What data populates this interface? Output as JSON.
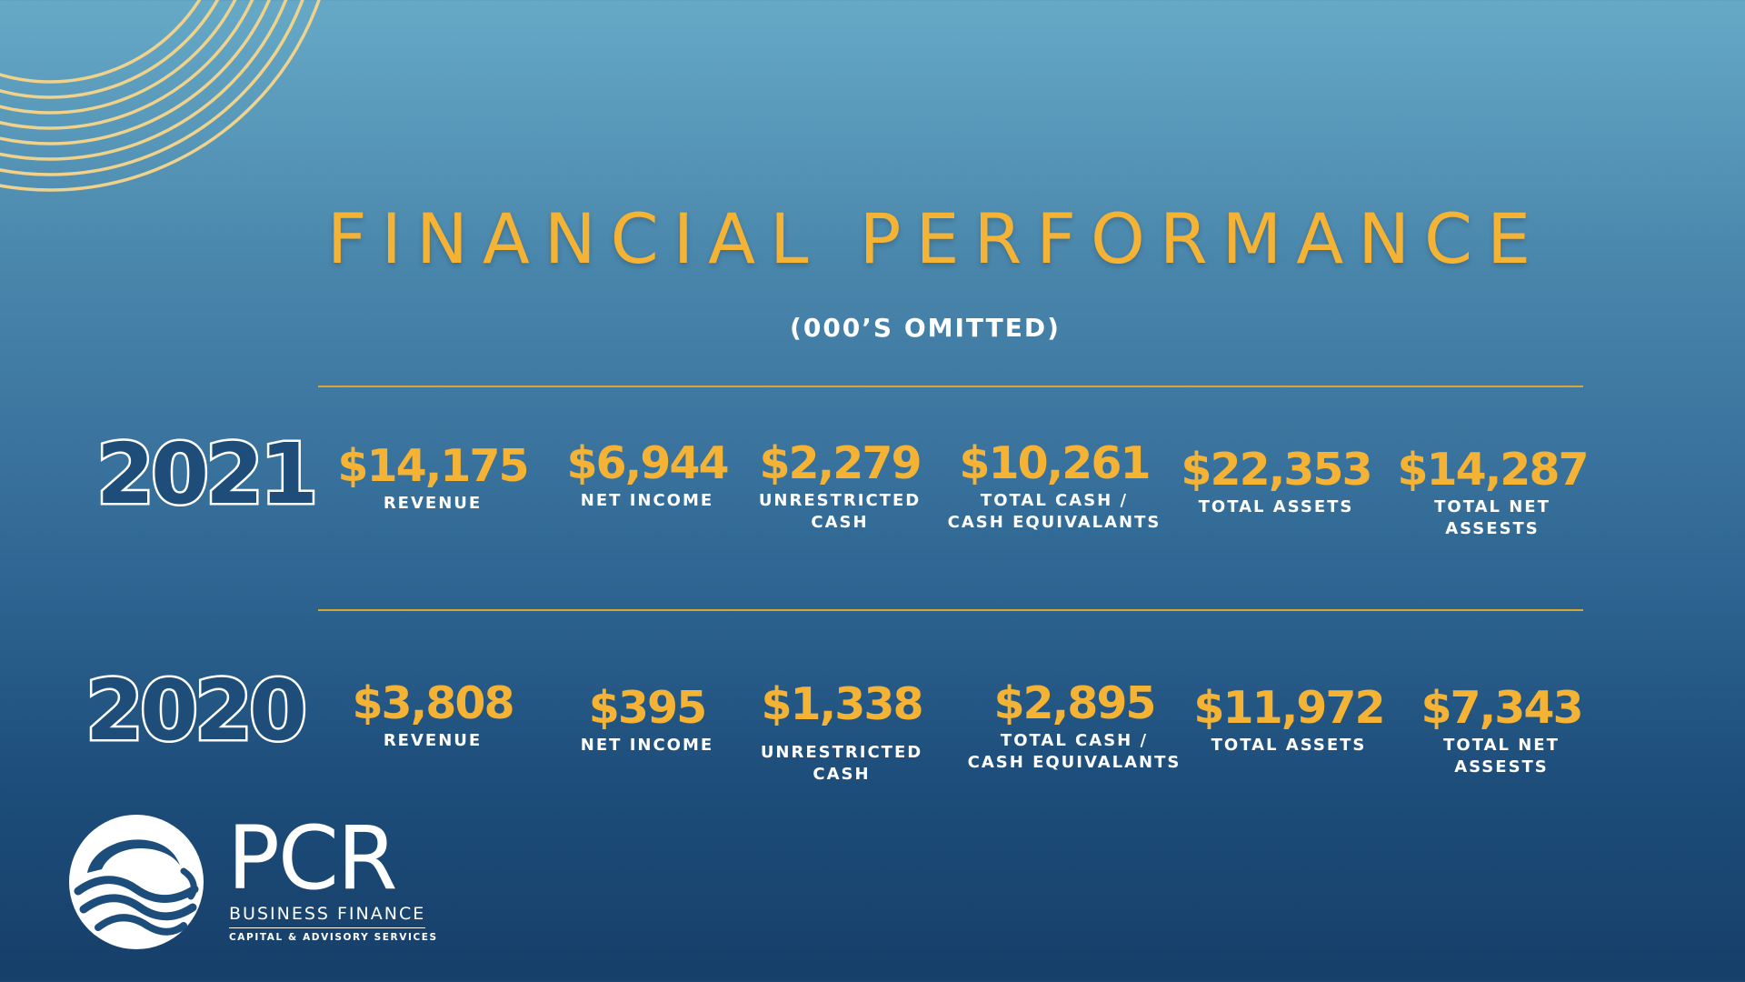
{
  "title": "FINANCIAL PERFORMANCE",
  "subtitle": "(000’S OMITTED)",
  "years": [
    {
      "year": "2021",
      "metrics": [
        {
          "value": "$14,175",
          "label": "REVENUE"
        },
        {
          "value": "$6,944",
          "label": "NET INCOME"
        },
        {
          "value": "$2,279",
          "label": "UNRESTRICTED\nCASH"
        },
        {
          "value": "$10,261",
          "label": "TOTAL CASH /\nCASH EQUIVALANTS"
        },
        {
          "value": "$22,353",
          "label": "TOTAL ASSETS"
        },
        {
          "value": "$14,287",
          "label": "TOTAL NET\nASSESTS"
        }
      ]
    },
    {
      "year": "2020",
      "metrics": [
        {
          "value": "$3,808",
          "label": "REVENUE"
        },
        {
          "value": "$395",
          "label": "NET INCOME"
        },
        {
          "value": "$1,338",
          "label": "UNRESTRICTED\nCASH"
        },
        {
          "value": "$2,895",
          "label": "TOTAL CASH /\nCASH EQUIVALANTS"
        },
        {
          "value": "$11,972",
          "label": "TOTAL ASSETS"
        },
        {
          "value": "$7,343",
          "label": "TOTAL NET\nASSESTS"
        }
      ]
    }
  ],
  "logo": {
    "name": "PCR",
    "line1": "BUSINESS FINANCE",
    "line2": "CAPITAL & ADVISORY SERVICES"
  },
  "colors": {
    "accent": "#f5b335",
    "background_top": "#66a9c7",
    "background_bottom": "#163f69",
    "arc": "#f0d28a"
  }
}
